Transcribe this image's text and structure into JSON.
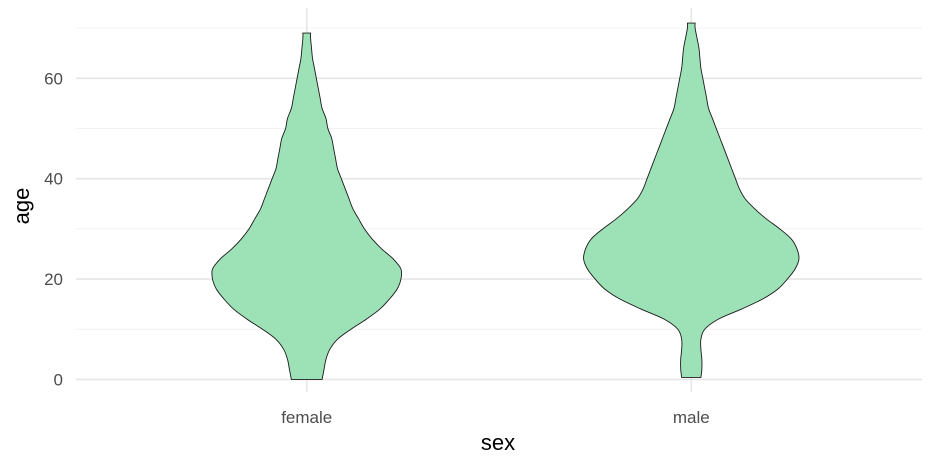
{
  "chart_data": {
    "type": "violin",
    "title": "",
    "xlabel": "sex",
    "ylabel": "age",
    "categories": [
      "female",
      "male"
    ],
    "ylim": [
      -2.5,
      74
    ],
    "yticks": [
      0,
      20,
      40,
      60
    ],
    "grid": true,
    "fill_color": "#9de1b7",
    "outline_color": "#1a1a1a",
    "series": [
      {
        "category": "female",
        "min": 0,
        "max": 69,
        "max_halfwidth": 0.49,
        "profile": [
          [
            0,
            0.08
          ],
          [
            2,
            0.09
          ],
          [
            4,
            0.1
          ],
          [
            6,
            0.12
          ],
          [
            8,
            0.16
          ],
          [
            10,
            0.23
          ],
          [
            12,
            0.31
          ],
          [
            14,
            0.38
          ],
          [
            16,
            0.43
          ],
          [
            18,
            0.47
          ],
          [
            20,
            0.49
          ],
          [
            22,
            0.49
          ],
          [
            24,
            0.45
          ],
          [
            26,
            0.39
          ],
          [
            28,
            0.34
          ],
          [
            30,
            0.3
          ],
          [
            32,
            0.27
          ],
          [
            34,
            0.24
          ],
          [
            36,
            0.22
          ],
          [
            38,
            0.2
          ],
          [
            40,
            0.18
          ],
          [
            42,
            0.16
          ],
          [
            44,
            0.15
          ],
          [
            46,
            0.14
          ],
          [
            48,
            0.13
          ],
          [
            50,
            0.11
          ],
          [
            52,
            0.1
          ],
          [
            54,
            0.08
          ],
          [
            56,
            0.07
          ],
          [
            58,
            0.06
          ],
          [
            60,
            0.05
          ],
          [
            62,
            0.04
          ],
          [
            64,
            0.03
          ],
          [
            66,
            0.025
          ],
          [
            68,
            0.02
          ],
          [
            69,
            0.02
          ]
        ]
      },
      {
        "category": "male",
        "min": 0.4,
        "max": 71,
        "max_halfwidth": 0.56,
        "profile": [
          [
            0.4,
            0.05
          ],
          [
            2,
            0.055
          ],
          [
            4,
            0.055
          ],
          [
            6,
            0.05
          ],
          [
            8,
            0.05
          ],
          [
            10,
            0.07
          ],
          [
            12,
            0.14
          ],
          [
            14,
            0.26
          ],
          [
            16,
            0.37
          ],
          [
            18,
            0.45
          ],
          [
            20,
            0.5
          ],
          [
            22,
            0.54
          ],
          [
            24,
            0.56
          ],
          [
            26,
            0.55
          ],
          [
            28,
            0.52
          ],
          [
            30,
            0.46
          ],
          [
            32,
            0.39
          ],
          [
            34,
            0.33
          ],
          [
            36,
            0.28
          ],
          [
            38,
            0.25
          ],
          [
            40,
            0.23
          ],
          [
            42,
            0.21
          ],
          [
            44,
            0.19
          ],
          [
            46,
            0.17
          ],
          [
            48,
            0.15
          ],
          [
            50,
            0.13
          ],
          [
            52,
            0.11
          ],
          [
            54,
            0.09
          ],
          [
            56,
            0.08
          ],
          [
            58,
            0.07
          ],
          [
            60,
            0.06
          ],
          [
            62,
            0.05
          ],
          [
            64,
            0.045
          ],
          [
            66,
            0.04
          ],
          [
            68,
            0.03
          ],
          [
            70,
            0.02
          ],
          [
            71,
            0.02
          ]
        ]
      }
    ]
  }
}
